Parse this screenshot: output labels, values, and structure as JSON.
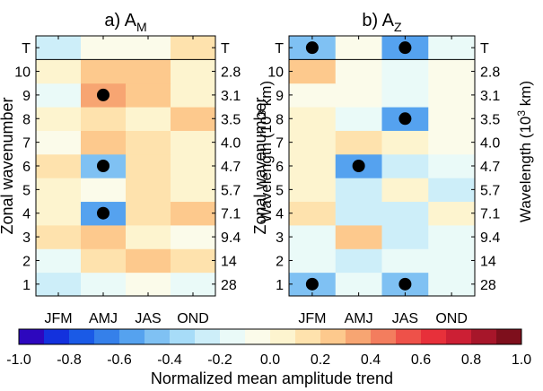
{
  "chart_data": [
    {
      "type": "heatmap",
      "title": "a) A",
      "title_subscript": "M",
      "xlabel": "",
      "ylabel": "Zonal wavenumber",
      "y2label": "Wavelength (10",
      "y2label_sup": "3",
      "y2label_end": " km)",
      "x_categories": [
        "JFM",
        "AMJ",
        "JAS",
        "OND"
      ],
      "y_categories": [
        "1",
        "2",
        "3",
        "4",
        "5",
        "6",
        "7",
        "8",
        "9",
        "10",
        "T"
      ],
      "y2_categories": [
        "28",
        "14",
        "9.4",
        "7.1",
        "5.7",
        "4.7",
        "4.0",
        "3.5",
        "3.1",
        "2.8",
        "T"
      ],
      "values": [
        [
          -0.25,
          -0.15,
          -0.1,
          -0.15
        ],
        [
          -0.2,
          0.15,
          0.2,
          0.15
        ],
        [
          0.1,
          0.25,
          0.05,
          -0.1
        ],
        [
          0.05,
          -0.55,
          0.15,
          0.2
        ],
        [
          0.05,
          -0.1,
          0.15,
          0.05
        ],
        [
          0.15,
          -0.45,
          0.15,
          0.05
        ],
        [
          -0.05,
          0.2,
          0.15,
          0.05
        ],
        [
          0.05,
          0.15,
          0.05,
          0.25
        ],
        [
          -0.2,
          0.35,
          0.2,
          0.0
        ],
        [
          0.05,
          0.2,
          0.2,
          0.05
        ],
        [
          -0.3,
          -0.1,
          -0.1,
          0.15
        ]
      ],
      "significant": [
        [
          "AMJ",
          "4"
        ],
        [
          "AMJ",
          "6"
        ],
        [
          "AMJ",
          "9"
        ]
      ]
    },
    {
      "type": "heatmap",
      "title": "b) A",
      "title_subscript": "Z",
      "xlabel": "",
      "ylabel": "Zonal wavenumber",
      "y2label": "Wavelength (10",
      "y2label_sup": "3",
      "y2label_end": " km)",
      "x_categories": [
        "JFM",
        "AMJ",
        "JAS",
        "OND"
      ],
      "y_categories": [
        "1",
        "2",
        "3",
        "4",
        "5",
        "6",
        "7",
        "8",
        "9",
        "10",
        "T"
      ],
      "y2_categories": [
        "28",
        "14",
        "9.4",
        "7.1",
        "5.7",
        "4.7",
        "4.0",
        "3.5",
        "3.1",
        "2.8",
        "T"
      ],
      "values": [
        [
          -0.45,
          -0.2,
          -0.5,
          -0.2
        ],
        [
          -0.15,
          -0.25,
          -0.2,
          -0.15
        ],
        [
          -0.2,
          0.2,
          -0.3,
          -0.15
        ],
        [
          0.1,
          -0.3,
          -0.3,
          0.05
        ],
        [
          0.05,
          -0.3,
          0.05,
          -0.3
        ],
        [
          0.05,
          -0.55,
          -0.25,
          -0.15
        ],
        [
          0.05,
          0.1,
          0.05,
          -0.1
        ],
        [
          0.05,
          -0.2,
          -0.55,
          -0.1
        ],
        [
          -0.1,
          -0.1,
          -0.2,
          -0.1
        ],
        [
          0.25,
          -0.1,
          -0.2,
          -0.1
        ],
        [
          -0.45,
          -0.05,
          -0.55,
          -0.15
        ]
      ],
      "significant": [
        [
          "JFM",
          "T"
        ],
        [
          "JAS",
          "T"
        ],
        [
          "JAS",
          "8"
        ],
        [
          "AMJ",
          "6"
        ],
        [
          "JFM",
          "1"
        ],
        [
          "JAS",
          "1"
        ]
      ]
    }
  ],
  "colorbar": {
    "label": "Normalized mean amplitude trend",
    "range": [
      -1.0,
      1.0
    ],
    "tick_labels": [
      "-1.0",
      "-0.8",
      "-0.6",
      "-0.4",
      "-0.2",
      "0.0",
      "0.2",
      "0.4",
      "0.6",
      "0.8",
      "1.0"
    ],
    "colors": [
      "#2d07be",
      "#1331dd",
      "#1a5ae6",
      "#3580ea",
      "#55a2ef",
      "#7fc1f3",
      "#a7dcf8",
      "#cdeef9",
      "#eafaf8",
      "#fbfbea",
      "#fdf4cf",
      "#fee2ad",
      "#fdc98d",
      "#f7a572",
      "#f37d5e",
      "#ee5149",
      "#e7303a",
      "#cc1f34",
      "#a7162a",
      "#7e0f1c"
    ]
  }
}
